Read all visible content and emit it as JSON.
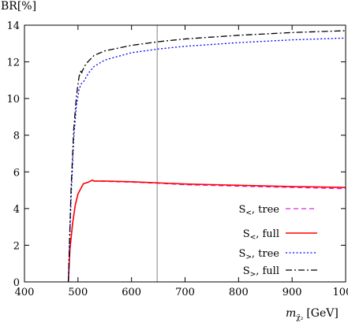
{
  "chart_data": {
    "type": "line",
    "ylabel": "BR[%]",
    "xlabel_main": "m",
    "xlabel_sub": "χ̃₂",
    "xlabel_unit": "[GeV]",
    "xlim": [
      400,
      1000
    ],
    "ylim": [
      0,
      14
    ],
    "x_ticks": [
      400,
      500,
      600,
      700,
      800,
      900,
      1000
    ],
    "y_ticks": [
      0,
      2,
      4,
      6,
      8,
      10,
      12,
      14
    ],
    "grid": false,
    "legend_position": "bottom-right",
    "reference_line_x": 648,
    "series": [
      {
        "name": "S<, tree",
        "label_main": "S",
        "label_sub": "<",
        "label_rest": ", tree",
        "color": "#e020e0",
        "dash": "6,4",
        "points": [
          [
            482,
            0
          ],
          [
            485,
            1.8
          ],
          [
            490,
            3.2
          ],
          [
            495,
            4.2
          ],
          [
            500,
            4.8
          ],
          [
            510,
            5.35
          ],
          [
            520,
            5.45
          ],
          [
            527,
            5.55
          ],
          [
            530,
            5.5
          ],
          [
            550,
            5.48
          ],
          [
            600,
            5.44
          ],
          [
            650,
            5.38
          ],
          [
            700,
            5.3
          ],
          [
            800,
            5.22
          ],
          [
            900,
            5.15
          ],
          [
            1000,
            5.08
          ]
        ]
      },
      {
        "name": "S<, full",
        "label_main": "S",
        "label_sub": "<",
        "label_rest": ", full",
        "color": "#ff0000",
        "dash": "",
        "points": [
          [
            482,
            0
          ],
          [
            485,
            1.8
          ],
          [
            490,
            3.2
          ],
          [
            495,
            4.2
          ],
          [
            500,
            4.8
          ],
          [
            510,
            5.35
          ],
          [
            520,
            5.45
          ],
          [
            527,
            5.55
          ],
          [
            530,
            5.5
          ],
          [
            550,
            5.5
          ],
          [
            600,
            5.46
          ],
          [
            650,
            5.4
          ],
          [
            700,
            5.34
          ],
          [
            800,
            5.27
          ],
          [
            900,
            5.2
          ],
          [
            1000,
            5.15
          ]
        ]
      },
      {
        "name": "S>, tree",
        "label_main": "S",
        "label_sub": ">",
        "label_rest": ", tree",
        "color": "#0000ff",
        "dash": "2,2.5",
        "points": [
          [
            482,
            0
          ],
          [
            487,
            4.5
          ],
          [
            492,
            7.8
          ],
          [
            497,
            9.6
          ],
          [
            502,
            10.5
          ],
          [
            506,
            10.8
          ],
          [
            510,
            10.9
          ],
          [
            520,
            11.4
          ],
          [
            530,
            11.75
          ],
          [
            550,
            12.1
          ],
          [
            600,
            12.5
          ],
          [
            650,
            12.7
          ],
          [
            700,
            12.85
          ],
          [
            800,
            13.05
          ],
          [
            900,
            13.2
          ],
          [
            1000,
            13.3
          ]
        ]
      },
      {
        "name": "S>, full",
        "label_main": "S",
        "label_sub": ">",
        "label_rest": ", full",
        "color": "#000000",
        "dash": "8,3,2,3",
        "points": [
          [
            482,
            0
          ],
          [
            487,
            5
          ],
          [
            492,
            8.3
          ],
          [
            497,
            10.1
          ],
          [
            502,
            11.2
          ],
          [
            505,
            11.45
          ],
          [
            506,
            11.55
          ],
          [
            507,
            11.4
          ],
          [
            508,
            11.5
          ],
          [
            515,
            11.9
          ],
          [
            530,
            12.35
          ],
          [
            550,
            12.6
          ],
          [
            600,
            12.9
          ],
          [
            650,
            13.1
          ],
          [
            700,
            13.25
          ],
          [
            800,
            13.45
          ],
          [
            900,
            13.6
          ],
          [
            1000,
            13.7
          ]
        ]
      }
    ]
  }
}
